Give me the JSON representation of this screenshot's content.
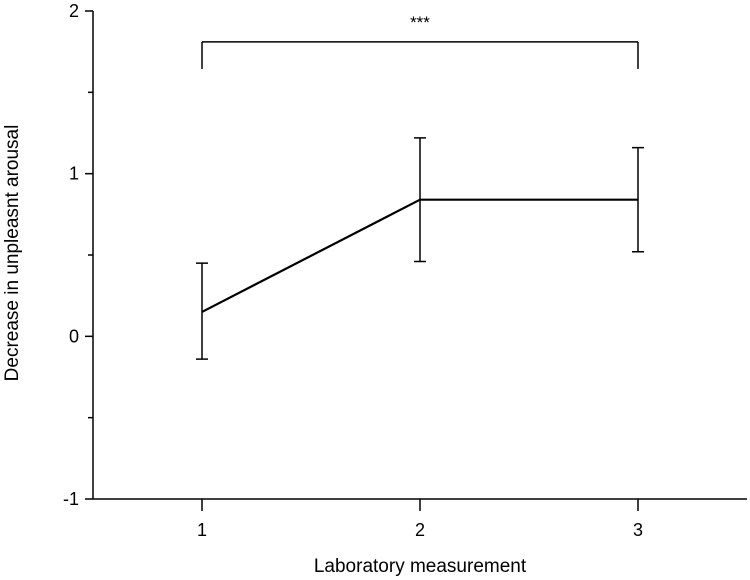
{
  "chart_data": {
    "type": "line",
    "title": "",
    "xlabel": "Laboratory measurement",
    "ylabel": "Decrease in unpleasnt arousal",
    "x_categories": [
      "1",
      "2",
      "3"
    ],
    "x_ticks": [
      "1",
      "2",
      "3"
    ],
    "y_ticks": [
      "-1",
      "0",
      "1",
      "2"
    ],
    "xlim": [
      0.5,
      3.5
    ],
    "ylim": [
      -1,
      2
    ],
    "grid": false,
    "series": [
      {
        "x": [
          1,
          2,
          3
        ],
        "values": [
          0.15,
          0.84,
          0.84
        ],
        "error_lower": [
          -0.14,
          0.46,
          0.52
        ],
        "error_upper": [
          0.45,
          1.22,
          1.16
        ],
        "color": "#000000"
      }
    ],
    "annotations": [
      {
        "type": "significance-bracket",
        "from_x": 1,
        "to_x": 3,
        "y": 1.81,
        "label": "***"
      }
    ]
  }
}
